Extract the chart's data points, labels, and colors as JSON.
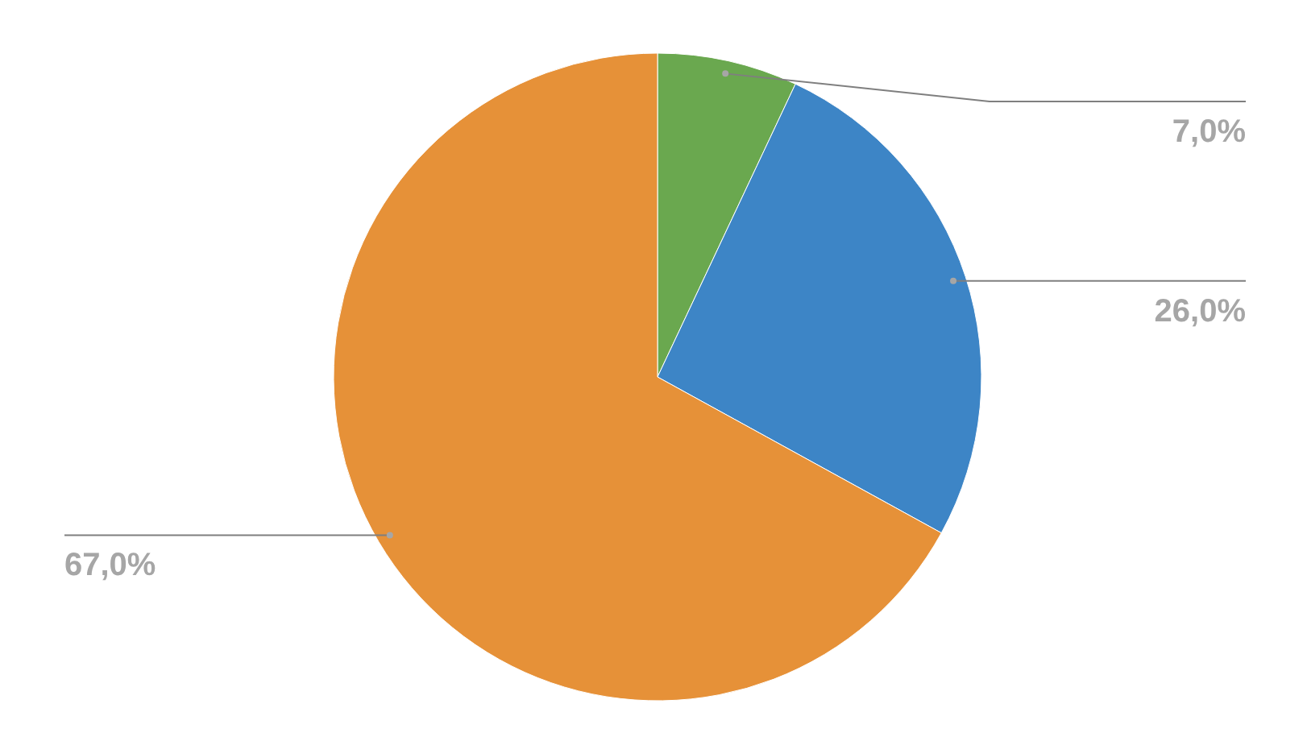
{
  "chart_data": {
    "type": "pie",
    "categories": [
      null,
      null,
      null
    ],
    "values": [
      7,
      26,
      67
    ],
    "colors": [
      "#6aa84f",
      "#3d85c6",
      "#e69138"
    ],
    "value_labels": [
      "7,0%",
      "26,0%",
      "67,0%"
    ]
  }
}
